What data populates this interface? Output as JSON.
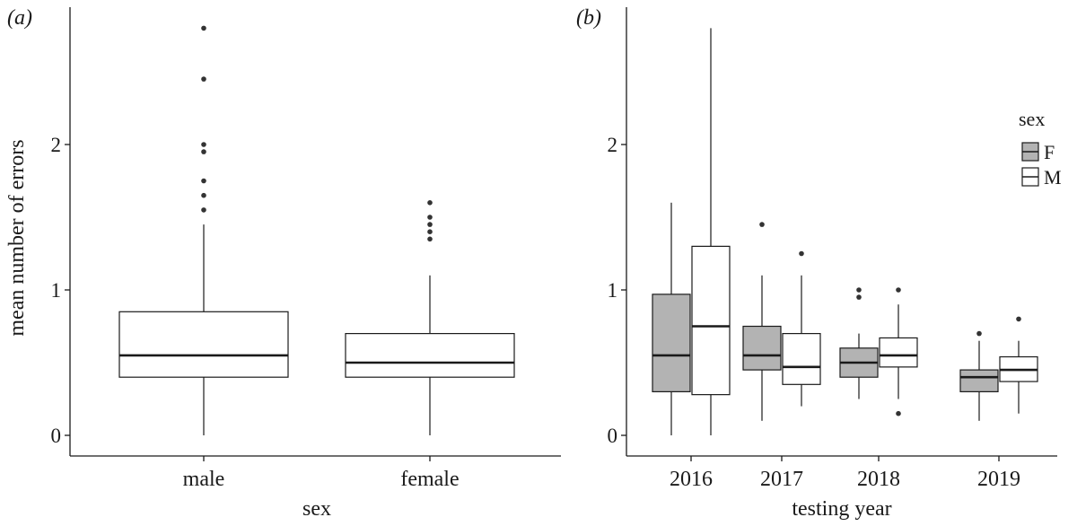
{
  "chart_data": [
    {
      "panel_label": "(a)",
      "type": "box",
      "xlabel": "sex",
      "ylabel": "mean number of errors",
      "ylim": [
        0,
        2.9
      ],
      "yticks": [
        0,
        1,
        2
      ],
      "ytick_labels": [
        "0",
        "1",
        "2"
      ],
      "categories": [
        "male",
        "female"
      ],
      "grid": false,
      "boxes": [
        {
          "category": "male",
          "min": 0,
          "q1": 0.4,
          "median": 0.55,
          "q3": 0.85,
          "max": 1.45,
          "fill": "#ffffff",
          "outliers": [
            1.55,
            1.65,
            1.75,
            1.95,
            2.0,
            2.45,
            2.8
          ]
        },
        {
          "category": "female",
          "min": 0,
          "q1": 0.4,
          "median": 0.5,
          "q3": 0.7,
          "max": 1.1,
          "fill": "#ffffff",
          "outliers": [
            1.35,
            1.4,
            1.45,
            1.5,
            1.6
          ]
        }
      ]
    },
    {
      "panel_label": "(b)",
      "type": "box",
      "xlabel": "testing year",
      "ylabel": "",
      "ylim": [
        0,
        2.9
      ],
      "yticks": [
        0,
        1,
        2
      ],
      "ytick_labels": [
        "0",
        "1",
        "2"
      ],
      "categories": [
        "2016",
        "2017",
        "2018",
        "2019"
      ],
      "grid": false,
      "legend": {
        "title": "sex",
        "position": "right",
        "entries": [
          {
            "label": "F",
            "fill": "#b3b3b3"
          },
          {
            "label": "M",
            "fill": "#ffffff"
          }
        ]
      },
      "boxes": [
        {
          "category": "2016",
          "group": "F",
          "min": 0,
          "q1": 0.3,
          "median": 0.55,
          "q3": 0.97,
          "max": 1.6,
          "outliers": []
        },
        {
          "category": "2016",
          "group": "M",
          "min": 0,
          "q1": 0.28,
          "median": 0.75,
          "q3": 1.3,
          "max": 2.8,
          "outliers": []
        },
        {
          "category": "2017",
          "group": "F",
          "min": 0.1,
          "q1": 0.45,
          "median": 0.55,
          "q3": 0.75,
          "max": 1.1,
          "outliers": [
            1.45
          ]
        },
        {
          "category": "2017",
          "group": "M",
          "min": 0.2,
          "q1": 0.35,
          "median": 0.47,
          "q3": 0.7,
          "max": 1.1,
          "outliers": [
            1.25
          ]
        },
        {
          "category": "2018",
          "group": "F",
          "min": 0.25,
          "q1": 0.4,
          "median": 0.5,
          "q3": 0.6,
          "max": 0.7,
          "outliers": [
            0.95,
            1.0
          ]
        },
        {
          "category": "2018",
          "group": "M",
          "min": 0.25,
          "q1": 0.47,
          "median": 0.55,
          "q3": 0.67,
          "max": 0.9,
          "outliers": [
            0.15,
            1.0
          ]
        },
        {
          "category": "2019",
          "group": "F",
          "min": 0.1,
          "q1": 0.3,
          "median": 0.4,
          "q3": 0.45,
          "max": 0.65,
          "outliers": [
            0.7
          ]
        },
        {
          "category": "2019",
          "group": "M",
          "min": 0.15,
          "q1": 0.37,
          "median": 0.45,
          "q3": 0.54,
          "max": 0.65,
          "outliers": [
            0.8
          ]
        }
      ]
    }
  ]
}
